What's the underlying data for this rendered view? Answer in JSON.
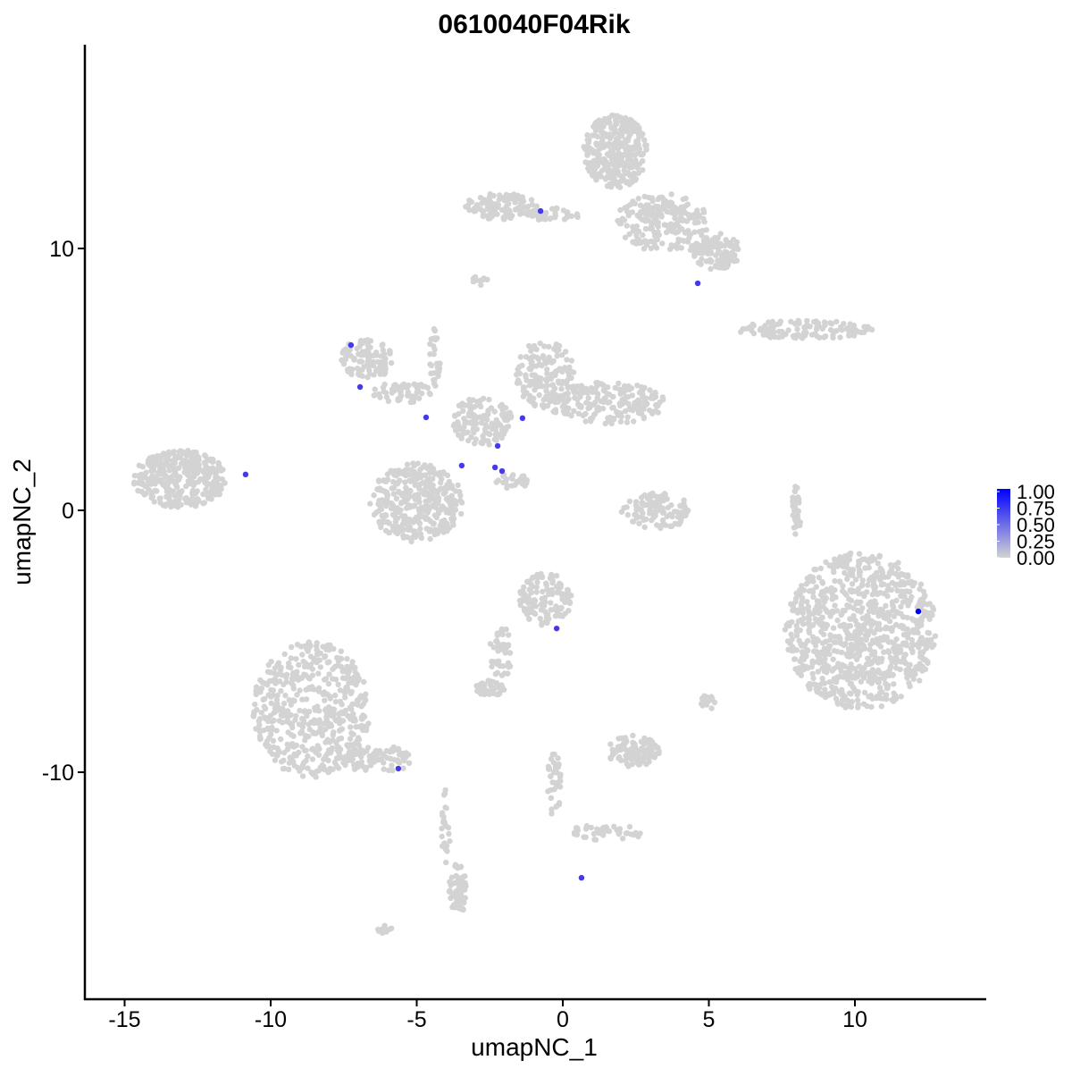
{
  "chart_data": {
    "type": "scatter",
    "title": "0610040F04Rik",
    "xlabel": "umapNC_1",
    "ylabel": "umapNC_2",
    "xlim": [
      -16.5,
      14.5
    ],
    "ylim": [
      -18,
      17.5
    ],
    "xticks": [
      -15,
      -10,
      -5,
      0,
      5,
      10
    ],
    "yticks": [
      -10,
      0,
      10
    ],
    "grid": false,
    "legend": {
      "position": "right",
      "type": "colorbar",
      "ticks": [
        "1.00",
        "0.75",
        "0.50",
        "0.25",
        "0.00"
      ],
      "low_color": "#d3d3d3",
      "high_color": "#0000ff"
    },
    "background_color": "#d3d3d3",
    "clusters": [
      {
        "cx": 10.2,
        "cy": -4.6,
        "rx": 2.6,
        "ry": 3.0,
        "n": 900
      },
      {
        "cx": -8.6,
        "cy": -7.6,
        "rx": 2.0,
        "ry": 2.6,
        "n": 500
      },
      {
        "cx": -6.3,
        "cy": -9.5,
        "rx": 1.3,
        "ry": 0.5,
        "n": 80
      },
      {
        "cx": -4.0,
        "cy": -12.0,
        "rx": 0.15,
        "ry": 1.5,
        "n": 25
      },
      {
        "cx": -3.6,
        "cy": -14.5,
        "rx": 0.3,
        "ry": 1.0,
        "n": 60
      },
      {
        "cx": -13.1,
        "cy": 1.2,
        "rx": 1.6,
        "ry": 1.1,
        "n": 350
      },
      {
        "cx": -5.0,
        "cy": 0.3,
        "rx": 1.6,
        "ry": 1.5,
        "n": 350
      },
      {
        "cx": -6.7,
        "cy": 5.8,
        "rx": 0.9,
        "ry": 0.8,
        "n": 100
      },
      {
        "cx": -5.5,
        "cy": 4.5,
        "rx": 1.0,
        "ry": 0.4,
        "n": 60
      },
      {
        "cx": -2.75,
        "cy": 3.4,
        "rx": 1.0,
        "ry": 1.0,
        "n": 120
      },
      {
        "cx": -0.6,
        "cy": 5.2,
        "rx": 1.0,
        "ry": 1.3,
        "n": 150
      },
      {
        "cx": 1.5,
        "cy": 4.1,
        "rx": 2.0,
        "ry": 0.8,
        "n": 200
      },
      {
        "cx": -4.4,
        "cy": 5.8,
        "rx": 0.2,
        "ry": 1.2,
        "n": 30
      },
      {
        "cx": -1.7,
        "cy": 1.1,
        "rx": 0.6,
        "ry": 0.3,
        "n": 25
      },
      {
        "cx": 1.8,
        "cy": 13.7,
        "rx": 1.1,
        "ry": 1.4,
        "n": 300
      },
      {
        "cx": 3.4,
        "cy": 11.0,
        "rx": 1.6,
        "ry": 1.1,
        "n": 200
      },
      {
        "cx": 5.2,
        "cy": 9.9,
        "rx": 0.9,
        "ry": 0.7,
        "n": 120
      },
      {
        "cx": -2.1,
        "cy": 11.6,
        "rx": 1.3,
        "ry": 0.5,
        "n": 100
      },
      {
        "cx": -0.3,
        "cy": 11.3,
        "rx": 1.0,
        "ry": 0.25,
        "n": 40
      },
      {
        "cx": 8.3,
        "cy": 6.9,
        "rx": 2.3,
        "ry": 0.35,
        "n": 120
      },
      {
        "cx": 3.2,
        "cy": 0.0,
        "rx": 1.2,
        "ry": 0.7,
        "n": 100
      },
      {
        "cx": -0.6,
        "cy": -3.4,
        "rx": 0.9,
        "ry": 1.0,
        "n": 120
      },
      {
        "cx": -2.1,
        "cy": -5.4,
        "rx": 0.4,
        "ry": 1.0,
        "n": 40
      },
      {
        "cx": -2.5,
        "cy": -6.8,
        "rx": 0.5,
        "ry": 0.3,
        "n": 40
      },
      {
        "cx": 2.4,
        "cy": -9.2,
        "rx": 0.9,
        "ry": 0.6,
        "n": 100
      },
      {
        "cx": -0.3,
        "cy": -10.5,
        "rx": 0.25,
        "ry": 1.3,
        "n": 40
      },
      {
        "cx": 1.5,
        "cy": -12.3,
        "rx": 1.3,
        "ry": 0.3,
        "n": 40
      },
      {
        "cx": 8.0,
        "cy": 0.0,
        "rx": 0.15,
        "ry": 1.0,
        "n": 30
      },
      {
        "cx": 5.0,
        "cy": -7.3,
        "rx": 0.3,
        "ry": 0.3,
        "n": 20
      },
      {
        "cx": -6.1,
        "cy": -16.0,
        "rx": 0.25,
        "ry": 0.15,
        "n": 10
      },
      {
        "cx": -2.8,
        "cy": 8.8,
        "rx": 0.3,
        "ry": 0.2,
        "n": 10
      }
    ],
    "expressing_points": [
      {
        "x": -0.76,
        "y": 11.43,
        "value": 0.55
      },
      {
        "x": 4.62,
        "y": 8.67,
        "value": 0.55
      },
      {
        "x": -7.25,
        "y": 6.31,
        "value": 0.55
      },
      {
        "x": -6.94,
        "y": 4.71,
        "value": 0.55
      },
      {
        "x": -4.68,
        "y": 3.55,
        "value": 0.55
      },
      {
        "x": -1.38,
        "y": 3.52,
        "value": 0.55
      },
      {
        "x": -2.23,
        "y": 2.46,
        "value": 0.55
      },
      {
        "x": -3.46,
        "y": 1.71,
        "value": 0.55
      },
      {
        "x": -2.32,
        "y": 1.64,
        "value": 0.55
      },
      {
        "x": -2.08,
        "y": 1.5,
        "value": 0.55
      },
      {
        "x": -10.86,
        "y": 1.37,
        "value": 0.55
      },
      {
        "x": -0.21,
        "y": -4.51,
        "value": 0.55
      },
      {
        "x": 12.17,
        "y": -3.86,
        "value": 1.0
      },
      {
        "x": -5.63,
        "y": -9.86,
        "value": 0.55
      },
      {
        "x": 0.64,
        "y": -14.03,
        "value": 0.55
      }
    ]
  }
}
